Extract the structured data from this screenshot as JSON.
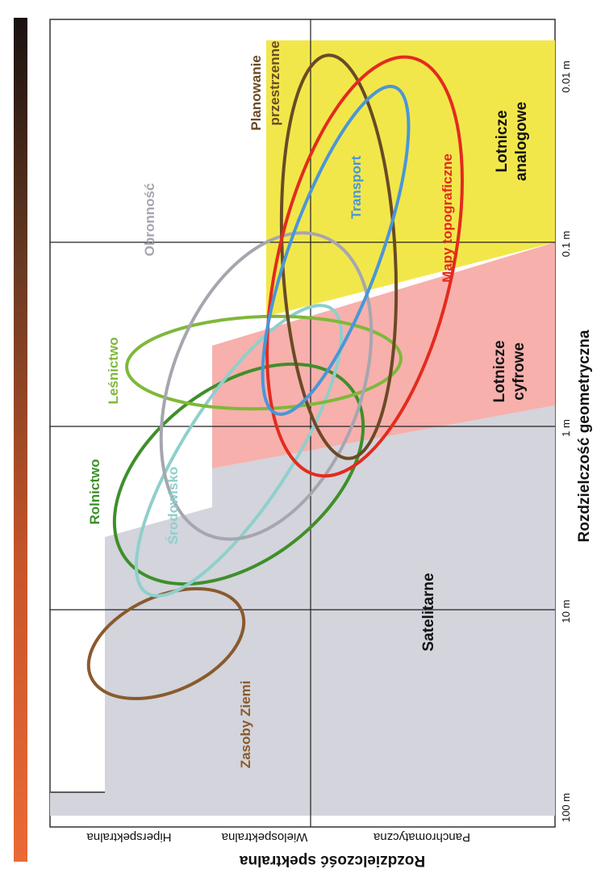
{
  "y_axis": {
    "title": "Rozdzielczość geometryczna",
    "ticks": [
      "100 m",
      "10 m",
      "1 m",
      "0.1 m",
      "0.01 m"
    ]
  },
  "x_axis": {
    "title": "Rozdzielczość spektralna",
    "ticks": [
      "Hiperspektralna",
      "Wielospektralna",
      "Panchromatyczna"
    ]
  },
  "regions": {
    "satellite": "Satelitarne",
    "aerial_digital": [
      "Lotnicze",
      "cyfrowe"
    ],
    "aerial_analog": [
      "Lotnicze",
      "analogowe"
    ]
  },
  "applications": {
    "earth_resources": "Zasoby Ziemi",
    "agriculture": "Rolnictwo",
    "environment": "Środowisko",
    "forestry": "Leśnictwo",
    "defense": "Obronność",
    "spatial_planning": [
      "Planowanie",
      "przestrzenne"
    ],
    "transport": "Transport",
    "topographic_maps": "Mapy topograficzne"
  },
  "colors": {
    "satellite_region": "#d3d4dc",
    "digital_region": "#f7b0ac",
    "analog_region": "#f2e74a",
    "earth_resources": "#8a5a2e",
    "agriculture": "#3f8f2a",
    "environment": "#8fcfcc",
    "forestry": "#7fb83a",
    "defense": "#a6a6b0",
    "spatial_planning": "#6b4a26",
    "transport": "#4a96d8",
    "topographic_maps": "#e32b1e"
  }
}
